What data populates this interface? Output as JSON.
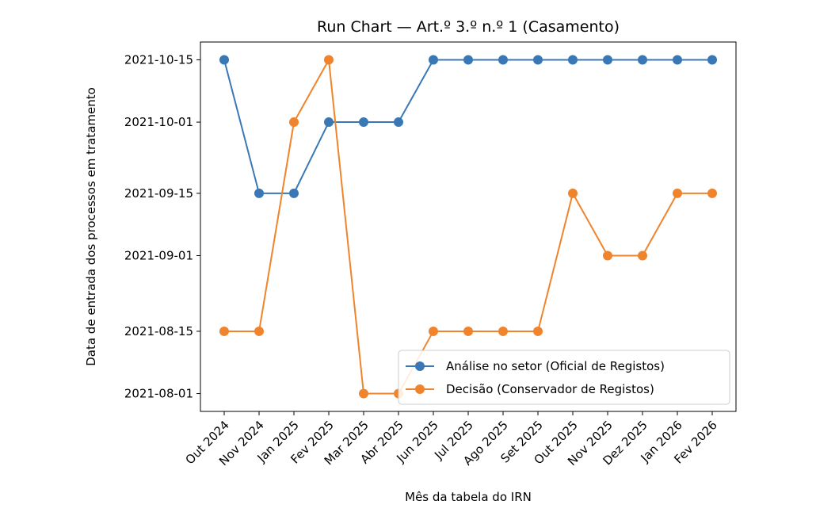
{
  "chart_data": {
    "type": "line",
    "title": "Run Chart — Art.º 3.º n.º 1 (Casamento)",
    "xlabel": "Mês da tabela do IRN",
    "ylabel": "Data de entrada dos processos em tratamento",
    "categories": [
      "Out 2024",
      "Nov 2024",
      "Jan 2025",
      "Fev 2025",
      "Mar 2025",
      "Abr 2025",
      "Jun 2025",
      "Jul 2025",
      "Ago 2025",
      "Set 2025",
      "Out 2025",
      "Nov 2025",
      "Dez 2025",
      "Jan 2026",
      "Fev 2026"
    ],
    "y_ticks": [
      "2021-08-01",
      "2021-08-15",
      "2021-09-01",
      "2021-09-15",
      "2021-10-01",
      "2021-10-15"
    ],
    "ylim": [
      "2021-07-28",
      "2021-10-19"
    ],
    "grid": false,
    "legend_position": "lower right",
    "series": [
      {
        "name": "Análise no setor (Oficial de Registos)",
        "color": "#3a78b5",
        "values": [
          "2021-10-15",
          "2021-09-15",
          "2021-09-15",
          "2021-10-01",
          "2021-10-01",
          "2021-10-01",
          "2021-10-15",
          "2021-10-15",
          "2021-10-15",
          "2021-10-15",
          "2021-10-15",
          "2021-10-15",
          "2021-10-15",
          "2021-10-15",
          "2021-10-15"
        ]
      },
      {
        "name": "Decisão (Conservador de Registos)",
        "color": "#f0842c",
        "values": [
          "2021-08-15",
          "2021-08-15",
          "2021-10-01",
          "2021-10-15",
          "2021-08-01",
          "2021-08-01",
          "2021-08-15",
          "2021-08-15",
          "2021-08-15",
          "2021-08-15",
          "2021-09-15",
          "2021-09-01",
          "2021-09-01",
          "2021-09-15",
          "2021-09-15"
        ]
      }
    ]
  }
}
